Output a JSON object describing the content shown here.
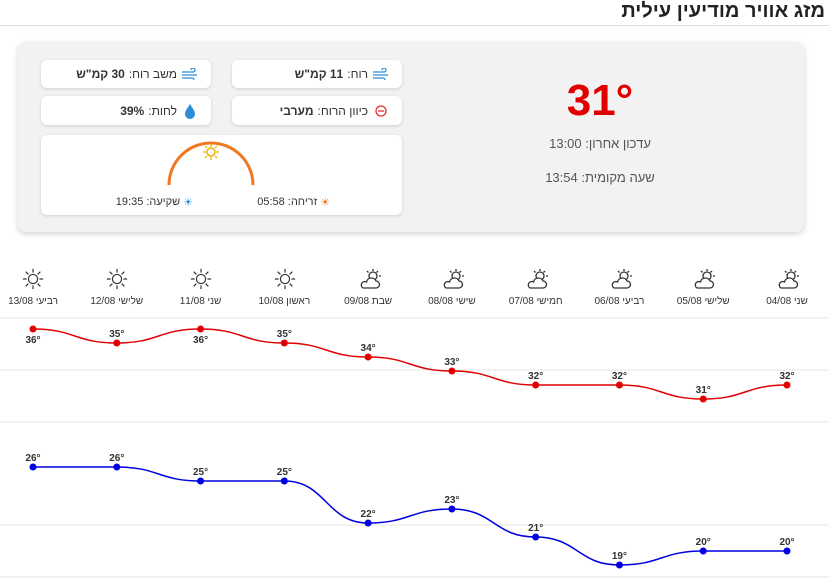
{
  "header": {
    "title": "מזג אוויר מודיעין עילית"
  },
  "current": {
    "temperature": "31°",
    "updated_label": "עדכון אחרון:",
    "updated": "13:00",
    "local_label": "שעה מקומית:",
    "local": "13:54",
    "wind_label": "רוח:",
    "wind": "11 קמ\"ש",
    "gust_label": "משב רוח:",
    "gust": "30 קמ\"ש",
    "direction_label": "כיוון הרוח:",
    "direction": "מערבי",
    "humidity_label": "לחות:",
    "humidity": "39%",
    "sunrise_label": "זריחה:",
    "sunrise": "05:58",
    "sunset_label": "שקיעה:",
    "sunset": "19:35"
  },
  "forecast": {
    "days": [
      "שני",
      "שלישי",
      "רביעי",
      "חמישי",
      "שישי",
      "שבת",
      "ראשון",
      "שני",
      "שלישי",
      "רביעי"
    ],
    "dates": [
      "04/08",
      "05/08",
      "06/08",
      "07/08",
      "08/08",
      "09/08",
      "10/08",
      "11/08",
      "12/08",
      "13/08"
    ],
    "high": {
      "color": "#e00000",
      "values": [
        32,
        31,
        32,
        32,
        33,
        34,
        35,
        36,
        35,
        36
      ],
      "value_labels": [
        "32°",
        "31°",
        "32°",
        "32°",
        "33°",
        "34°",
        "35°",
        "36°",
        "35°",
        "36°"
      ]
    },
    "low": {
      "color": "#0000e0",
      "values": [
        20,
        20,
        19,
        21,
        23,
        22,
        25,
        25,
        26,
        26
      ],
      "value_labels": [
        "20°",
        "20°",
        "19°",
        "21°",
        "23°",
        "22°",
        "25°",
        "25°",
        "26°",
        "26°"
      ]
    }
  }
}
